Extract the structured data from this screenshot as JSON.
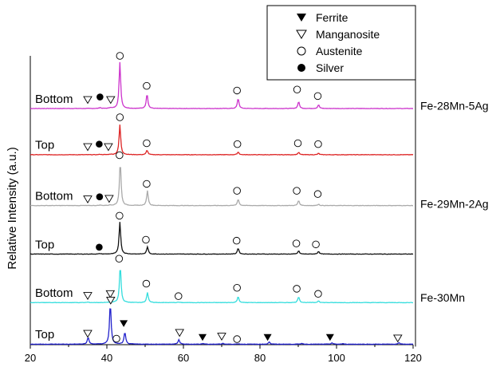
{
  "chart_data": {
    "type": "line",
    "ylabel": "Relative Intensity (a.u.)",
    "xlabel": "",
    "xlim": [
      20,
      120
    ],
    "x_ticks": [
      20,
      40,
      60,
      80,
      100,
      120
    ],
    "y_units": "stacked arbitrary units (pattern offset + relative intensity 0-100)",
    "grid": false,
    "legend_position": "top-right",
    "legend": [
      {
        "label": "Ferrite",
        "marker": "filled-triangle"
      },
      {
        "label": "Manganosite",
        "marker": "open-triangle"
      },
      {
        "label": "Austenite",
        "marker": "open-circle"
      },
      {
        "label": "Silver",
        "marker": "filled-circle"
      }
    ],
    "groups": [
      {
        "label": "Fe-28Mn-5Ag",
        "members": [
          "Fe-28Mn-5Ag Bottom",
          "Fe-28Mn-5Ag Top"
        ]
      },
      {
        "label": "Fe-29Mn-2Ag",
        "members": [
          "Fe-29Mn-2Ag Bottom",
          "Fe-29Mn-2Ag Top"
        ]
      },
      {
        "label": "Fe-30Mn",
        "members": [
          "Fe-30Mn Bottom",
          "Fe-30Mn Top"
        ]
      }
    ],
    "series": [
      {
        "name": "Fe-28Mn-5Ag Bottom",
        "label": "Bottom",
        "color": "#cc33cc",
        "offset": 510,
        "peaks": [
          [
            35.0,
            0
          ],
          [
            38.2,
            2
          ],
          [
            40.9,
            2
          ],
          [
            43.4,
            100
          ],
          [
            50.5,
            32
          ],
          [
            74.3,
            22
          ],
          [
            90.1,
            15
          ],
          [
            95.3,
            8
          ]
        ],
        "markers": [
          {
            "x": 35.0,
            "symbol": "open-triangle",
            "y": 20
          },
          {
            "x": 38.2,
            "symbol": "filled-circle",
            "y": 26
          },
          {
            "x": 41.0,
            "symbol": "open-triangle",
            "y": 20
          },
          {
            "x": 43.4,
            "symbol": "open-circle",
            "y": 115
          },
          {
            "x": 50.4,
            "symbol": "open-circle",
            "y": 50
          },
          {
            "x": 74.0,
            "symbol": "open-circle",
            "y": 40
          },
          {
            "x": 89.7,
            "symbol": "open-circle",
            "y": 42
          },
          {
            "x": 95.1,
            "symbol": "open-circle",
            "y": 28
          }
        ]
      },
      {
        "name": "Fe-28Mn-5Ag Top",
        "label": "Top",
        "color": "#dd2222",
        "offset": 410,
        "peaks": [
          [
            35.0,
            0
          ],
          [
            38.2,
            1
          ],
          [
            40.9,
            1
          ],
          [
            43.4,
            65
          ],
          [
            50.5,
            10
          ],
          [
            74.3,
            6
          ],
          [
            90.1,
            5
          ],
          [
            95.3,
            3
          ]
        ],
        "markers": [
          {
            "x": 35.0,
            "symbol": "open-triangle",
            "y": 18
          },
          {
            "x": 38.0,
            "symbol": "filled-circle",
            "y": 24
          },
          {
            "x": 40.4,
            "symbol": "open-triangle",
            "y": 18
          },
          {
            "x": 43.4,
            "symbol": "open-circle",
            "y": 82
          },
          {
            "x": 50.4,
            "symbol": "open-circle",
            "y": 26
          },
          {
            "x": 74.1,
            "symbol": "open-circle",
            "y": 24
          },
          {
            "x": 89.9,
            "symbol": "open-circle",
            "y": 26
          },
          {
            "x": 95.2,
            "symbol": "open-circle",
            "y": 24
          }
        ]
      },
      {
        "name": "Fe-29Mn-2Ag Bottom",
        "label": "Bottom",
        "color": "#aaaaaa",
        "offset": 300,
        "peaks": [
          [
            35.0,
            0
          ],
          [
            38.2,
            1
          ],
          [
            40.9,
            1
          ],
          [
            43.5,
            95
          ],
          [
            50.6,
            32
          ],
          [
            74.3,
            14
          ],
          [
            90.1,
            11
          ],
          [
            95.3,
            3
          ]
        ],
        "markers": [
          {
            "x": 35.0,
            "symbol": "open-triangle",
            "y": 15
          },
          {
            "x": 38.1,
            "symbol": "filled-circle",
            "y": 20
          },
          {
            "x": 40.6,
            "symbol": "open-triangle",
            "y": 16
          },
          {
            "x": 43.3,
            "symbol": "open-circle",
            "y": 110
          },
          {
            "x": 50.4,
            "symbol": "open-circle",
            "y": 48
          },
          {
            "x": 74.0,
            "symbol": "open-circle",
            "y": 33
          },
          {
            "x": 89.6,
            "symbol": "open-circle",
            "y": 33
          },
          {
            "x": 95.1,
            "symbol": "open-circle",
            "y": 26
          }
        ]
      },
      {
        "name": "Fe-29Mn-2Ag Top",
        "label": "Top",
        "color": "#111111",
        "offset": 195,
        "peaks": [
          [
            38.2,
            1
          ],
          [
            43.4,
            70
          ],
          [
            50.6,
            16
          ],
          [
            74.3,
            13
          ],
          [
            90.1,
            7
          ],
          [
            95.3,
            6
          ]
        ],
        "markers": [
          {
            "x": 38.0,
            "symbol": "filled-circle",
            "y": 16
          },
          {
            "x": 43.3,
            "symbol": "open-circle",
            "y": 84
          },
          {
            "x": 50.2,
            "symbol": "open-circle",
            "y": 32
          },
          {
            "x": 73.9,
            "symbol": "open-circle",
            "y": 30
          },
          {
            "x": 89.5,
            "symbol": "open-circle",
            "y": 24
          },
          {
            "x": 94.6,
            "symbol": "open-circle",
            "y": 22
          }
        ]
      },
      {
        "name": "Fe-30Mn Bottom",
        "label": "Bottom",
        "color": "#33dddd",
        "offset": 90,
        "peaks": [
          [
            35.0,
            1
          ],
          [
            40.9,
            2
          ],
          [
            43.5,
            80
          ],
          [
            50.6,
            22
          ],
          [
            58.7,
            1
          ],
          [
            74.3,
            13
          ],
          [
            90.1,
            13
          ],
          [
            95.3,
            4
          ]
        ],
        "markers": [
          {
            "x": 35.0,
            "symbol": "open-triangle",
            "y": 16
          },
          {
            "x": 40.9,
            "symbol": "open-triangle",
            "y": 20
          },
          {
            "x": 43.2,
            "symbol": "open-circle",
            "y": 96
          },
          {
            "x": 50.3,
            "symbol": "open-circle",
            "y": 42
          },
          {
            "x": 58.7,
            "symbol": "open-circle",
            "y": 15
          },
          {
            "x": 74.0,
            "symbol": "open-circle",
            "y": 33
          },
          {
            "x": 89.6,
            "symbol": "open-circle",
            "y": 31
          },
          {
            "x": 95.2,
            "symbol": "open-circle",
            "y": 20
          }
        ]
      },
      {
        "name": "Fe-30Mn Top",
        "label": "Top",
        "color": "#2222cc",
        "offset": 0,
        "peaks": [
          [
            35.1,
            15
          ],
          [
            40.9,
            88
          ],
          [
            44.7,
            26
          ],
          [
            58.8,
            10
          ],
          [
            65.1,
            2
          ],
          [
            70.3,
            2
          ],
          [
            74.3,
            1
          ],
          [
            82.4,
            5
          ],
          [
            90.9,
            2
          ],
          [
            98.8,
            3
          ],
          [
            101.6,
            1
          ],
          [
            116.3,
            3
          ]
        ],
        "markers": [
          {
            "x": 35.0,
            "symbol": "open-triangle",
            "y": 24
          },
          {
            "x": 41.0,
            "symbol": "open-triangle",
            "y": 96
          },
          {
            "x": 44.4,
            "symbol": "filled-triangle",
            "y": 46
          },
          {
            "x": 42.5,
            "symbol": "open-circle",
            "y": 13
          },
          {
            "x": 59.0,
            "symbol": "open-triangle",
            "y": 26
          },
          {
            "x": 65.0,
            "symbol": "filled-triangle",
            "y": 16
          },
          {
            "x": 70.0,
            "symbol": "open-triangle",
            "y": 18
          },
          {
            "x": 74.0,
            "symbol": "open-circle",
            "y": 12
          },
          {
            "x": 82.0,
            "symbol": "filled-triangle",
            "y": 16
          },
          {
            "x": 98.3,
            "symbol": "filled-triangle",
            "y": 16
          },
          {
            "x": 116.0,
            "symbol": "open-triangle",
            "y": 14
          }
        ]
      }
    ]
  }
}
